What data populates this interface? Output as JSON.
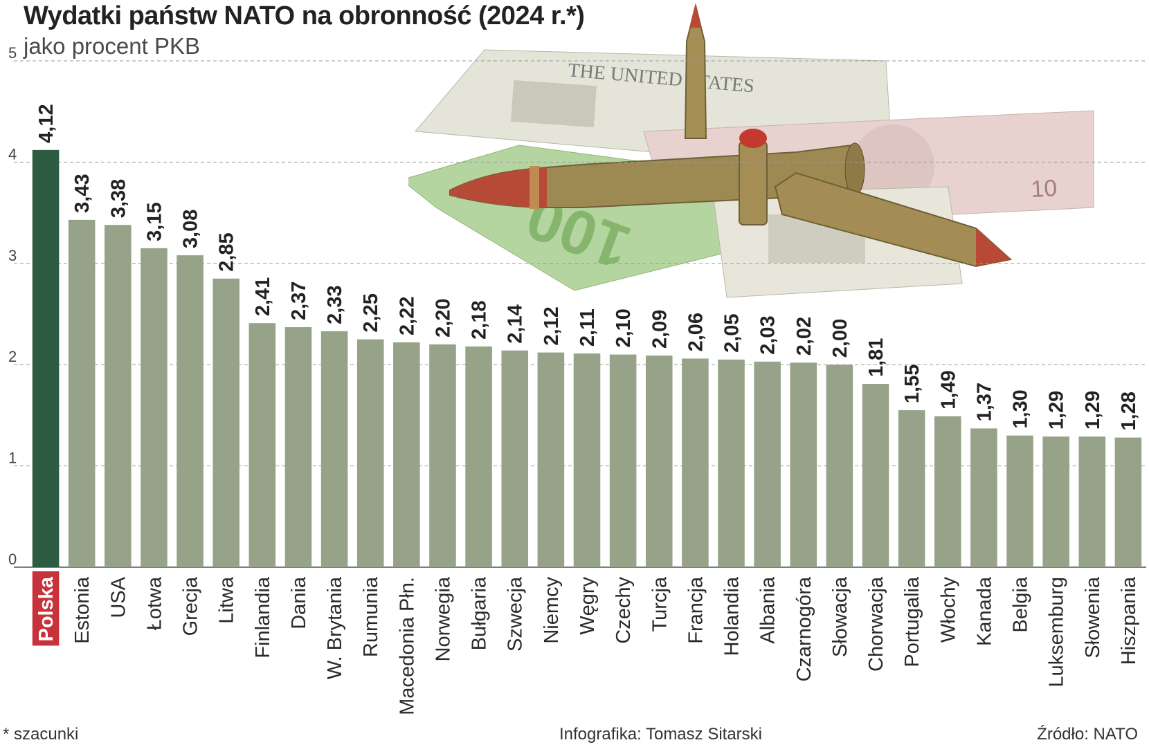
{
  "header": {
    "title": "Wydatki państw NATO na obronność (2024 r.*)",
    "subtitle": "jako procent PKB"
  },
  "footer": {
    "note": "* szacunki",
    "credit": "Infografika: Tomasz Sitarski",
    "source": "Źródło: NATO"
  },
  "colors": {
    "bar": "#97a389",
    "highlight_bar": "#2d5c43",
    "highlight_label_bg": "#c8323a"
  },
  "chart_data": {
    "type": "bar",
    "title": "Wydatki państw NATO na obronność (2024 r.*)",
    "subtitle": "jako procent PKB",
    "xlabel": "",
    "ylabel": "",
    "ylim": [
      0,
      5
    ],
    "yticks": [
      "0",
      "1",
      "2",
      "3",
      "4",
      "5"
    ],
    "grid": true,
    "highlight_category": "Polska",
    "categories": [
      "Polska",
      "Estonia",
      "USA",
      "Łotwa",
      "Grecja",
      "Litwa",
      "Finlandia",
      "Dania",
      "W. Brytania",
      "Rumunia",
      "Macedonia Płn.",
      "Norwegia",
      "Bułgaria",
      "Szwecja",
      "Niemcy",
      "Węgry",
      "Czechy",
      "Turcja",
      "Francja",
      "Holandia",
      "Albania",
      "Czarnogóra",
      "Słowacja",
      "Chorwacja",
      "Portugalia",
      "Włochy",
      "Kanada",
      "Belgia",
      "Luksemburg",
      "Słowenia",
      "Hiszpania"
    ],
    "values": [
      4.12,
      3.43,
      3.38,
      3.15,
      3.08,
      2.85,
      2.41,
      2.37,
      2.33,
      2.25,
      2.22,
      2.2,
      2.18,
      2.14,
      2.12,
      2.11,
      2.1,
      2.09,
      2.06,
      2.05,
      2.03,
      2.02,
      2.0,
      1.81,
      1.55,
      1.49,
      1.37,
      1.3,
      1.29,
      1.29,
      1.28
    ],
    "value_labels": [
      "4,12",
      "3,43",
      "3,38",
      "3,15",
      "3,08",
      "2,85",
      "2,41",
      "2,37",
      "2,33",
      "2,25",
      "2,22",
      "2,20",
      "2,18",
      "2,14",
      "2,12",
      "2,11",
      "2,10",
      "2,09",
      "2,06",
      "2,05",
      "2,03",
      "2,02",
      "2,00",
      "1,81",
      "1,55",
      "1,49",
      "1,37",
      "1,30",
      "1,29",
      "1,29",
      "1,28"
    ]
  }
}
